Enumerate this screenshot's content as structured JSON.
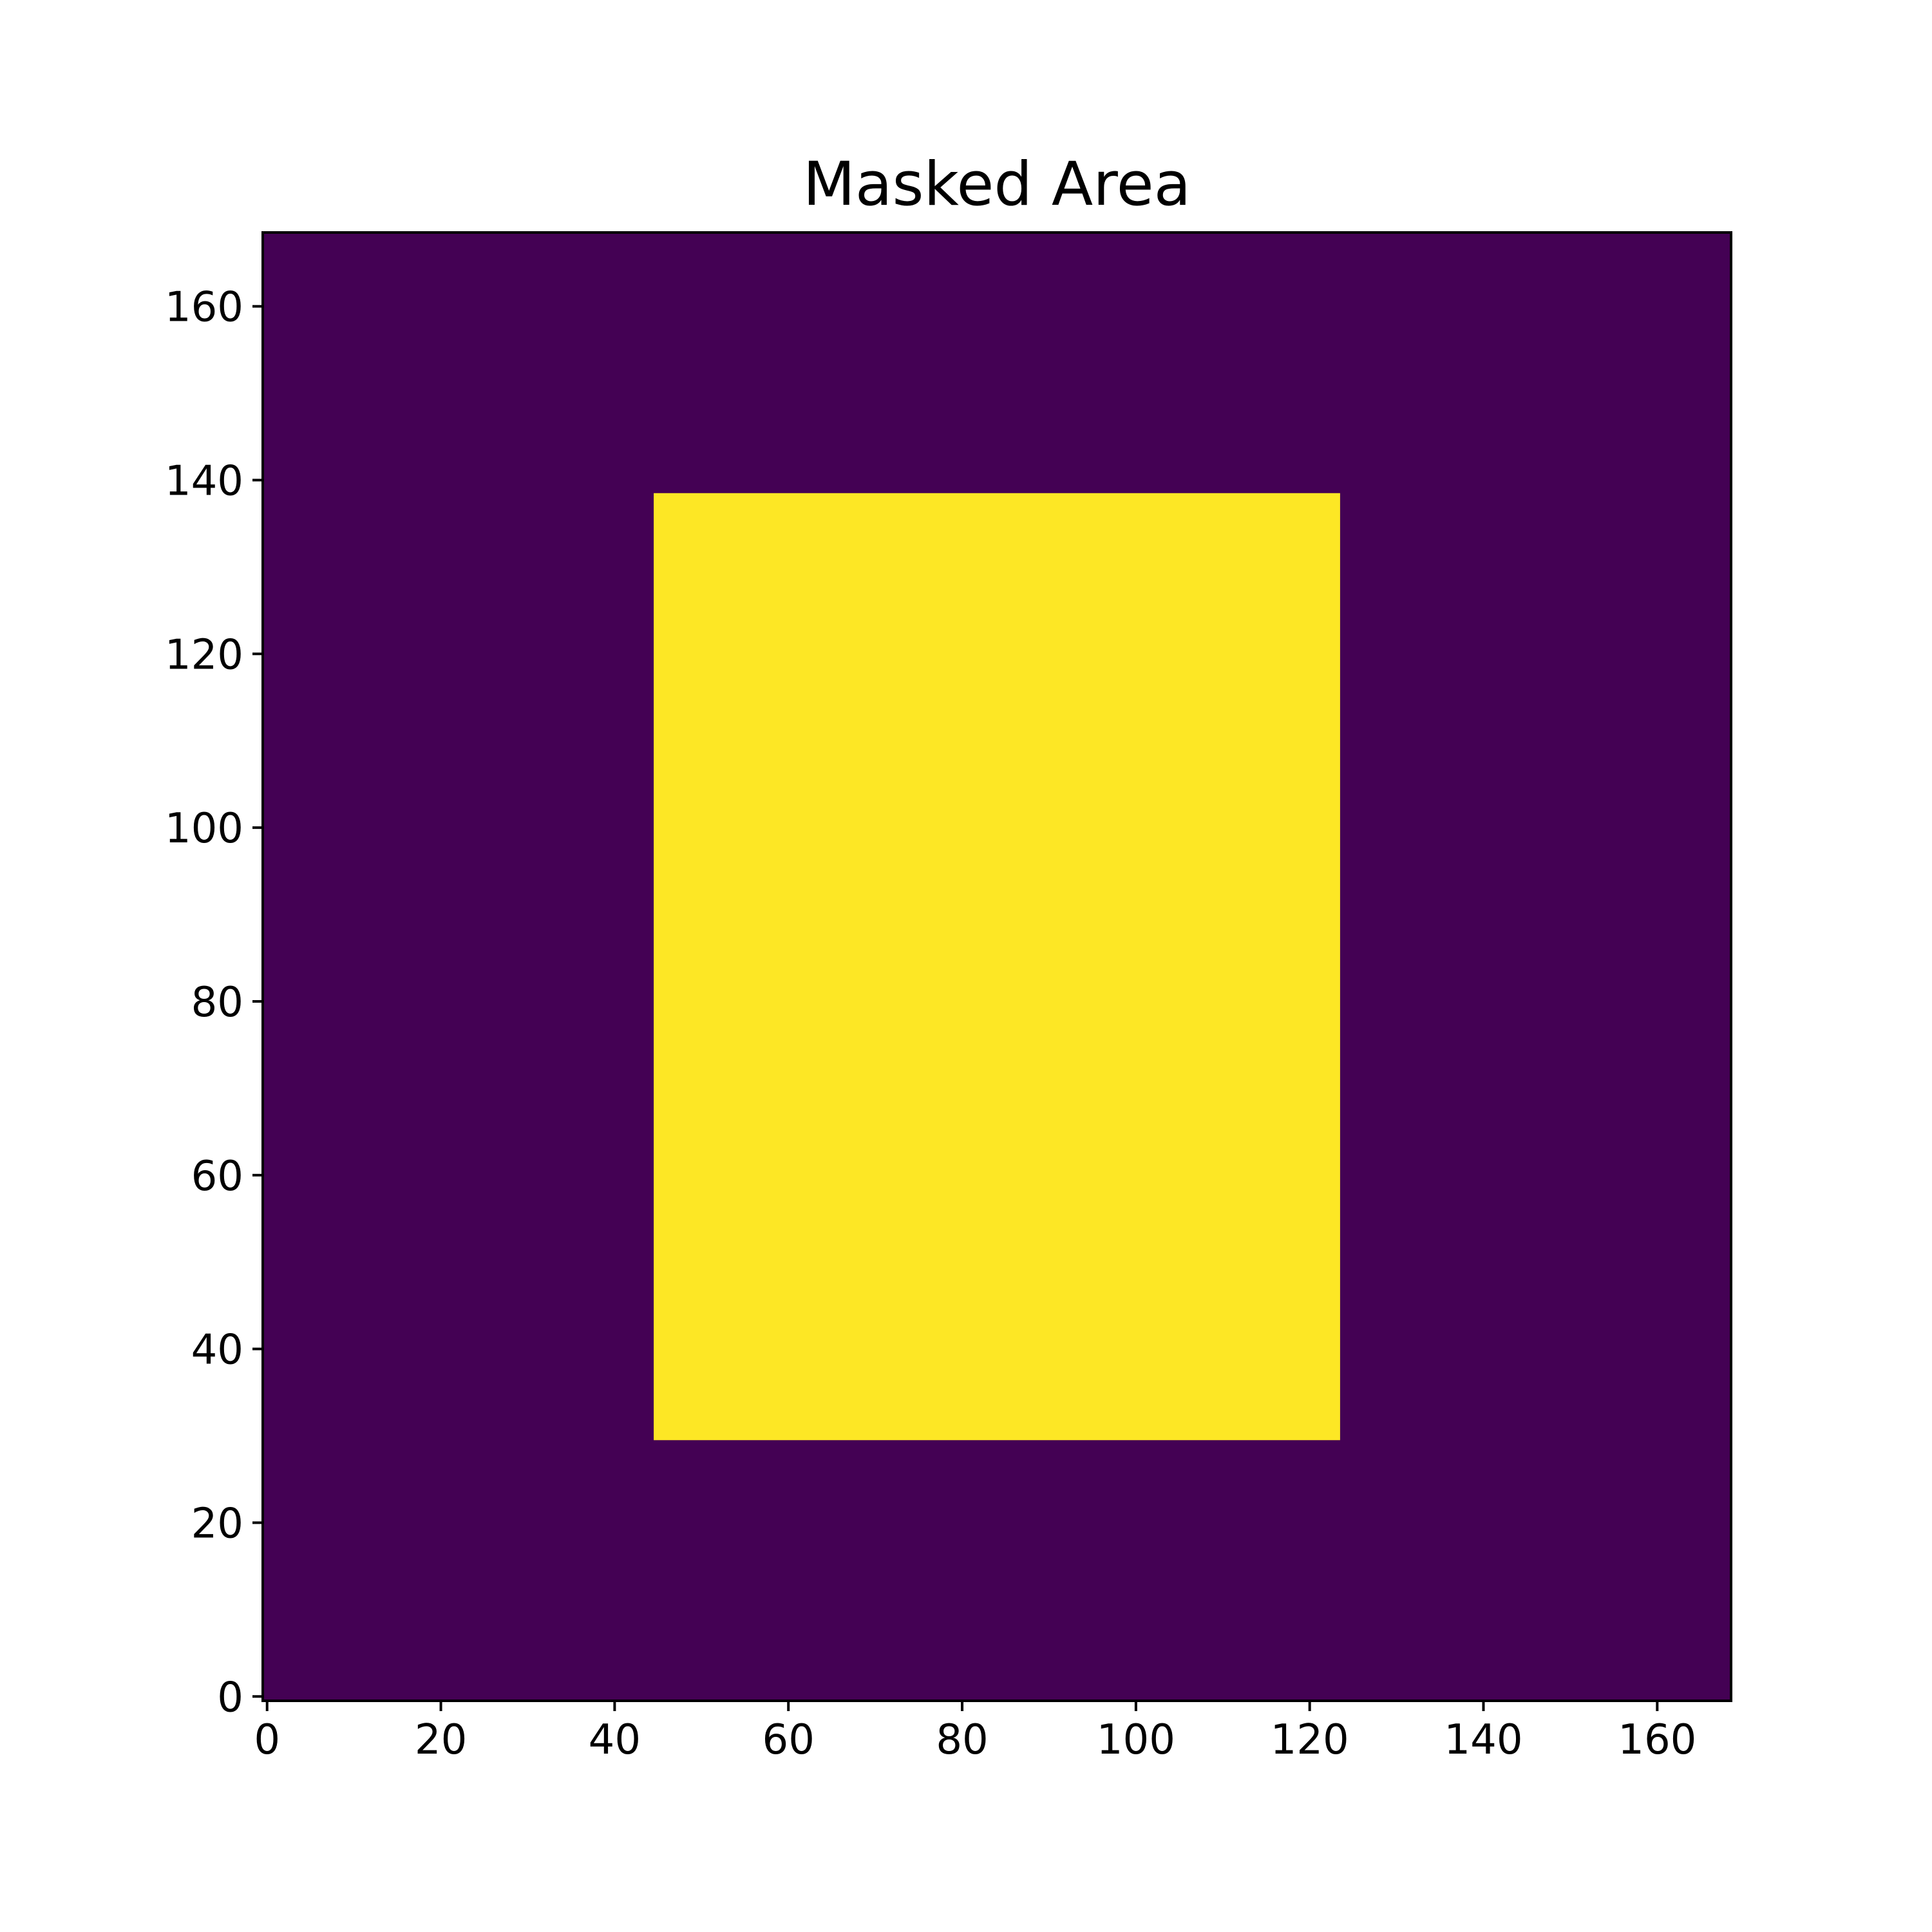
{
  "chart_data": {
    "type": "heatmap",
    "title": "Masked Area",
    "xlabel": "",
    "ylabel": "",
    "xlim": [
      -0.5,
      168.5
    ],
    "ylim": [
      -0.5,
      168.5
    ],
    "xticks": [
      0,
      20,
      40,
      60,
      80,
      100,
      120,
      140,
      160
    ],
    "yticks": [
      0,
      20,
      40,
      60,
      80,
      100,
      120,
      140,
      160
    ],
    "grid": false,
    "legend": "none",
    "background_value": 0,
    "mask_value": 1,
    "mask_region": {
      "x": [
        44.5,
        123.5
      ],
      "y": [
        29.5,
        138.5
      ]
    },
    "colors": {
      "background": "#440154",
      "mask": "#fde725"
    }
  }
}
